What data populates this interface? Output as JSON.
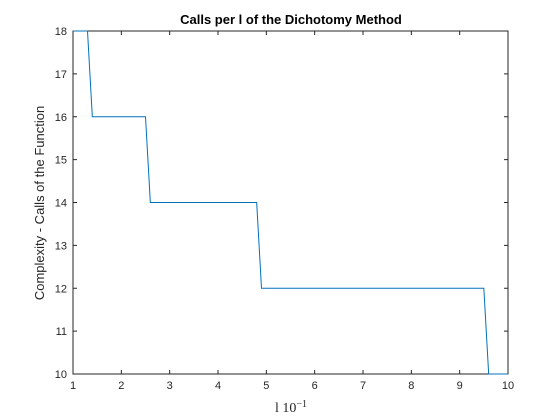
{
  "chart_data": {
    "type": "line",
    "title": "Calls per l of the Dichotomy Method",
    "xlabel": "l 10^-1",
    "xlabel_base": "l 10",
    "xlabel_exp": "−1",
    "ylabel": "Complexity - Calls of the Function",
    "xlim": [
      1,
      10
    ],
    "ylim": [
      10,
      18
    ],
    "xticks": [
      1,
      2,
      3,
      4,
      5,
      6,
      7,
      8,
      9,
      10
    ],
    "yticks": [
      10,
      11,
      12,
      13,
      14,
      15,
      16,
      17,
      18
    ],
    "grid": false,
    "series": [
      {
        "color": "#0072BD",
        "x": [
          1.0,
          1.3,
          1.4,
          2.5,
          2.6,
          4.8,
          4.9,
          9.5,
          9.6,
          10.0
        ],
        "y": [
          18,
          18,
          16,
          16,
          14,
          14,
          12,
          12,
          10,
          10
        ]
      }
    ]
  },
  "colors": {
    "axis": "#262626",
    "background": "#ffffff",
    "line": "#0072BD"
  }
}
